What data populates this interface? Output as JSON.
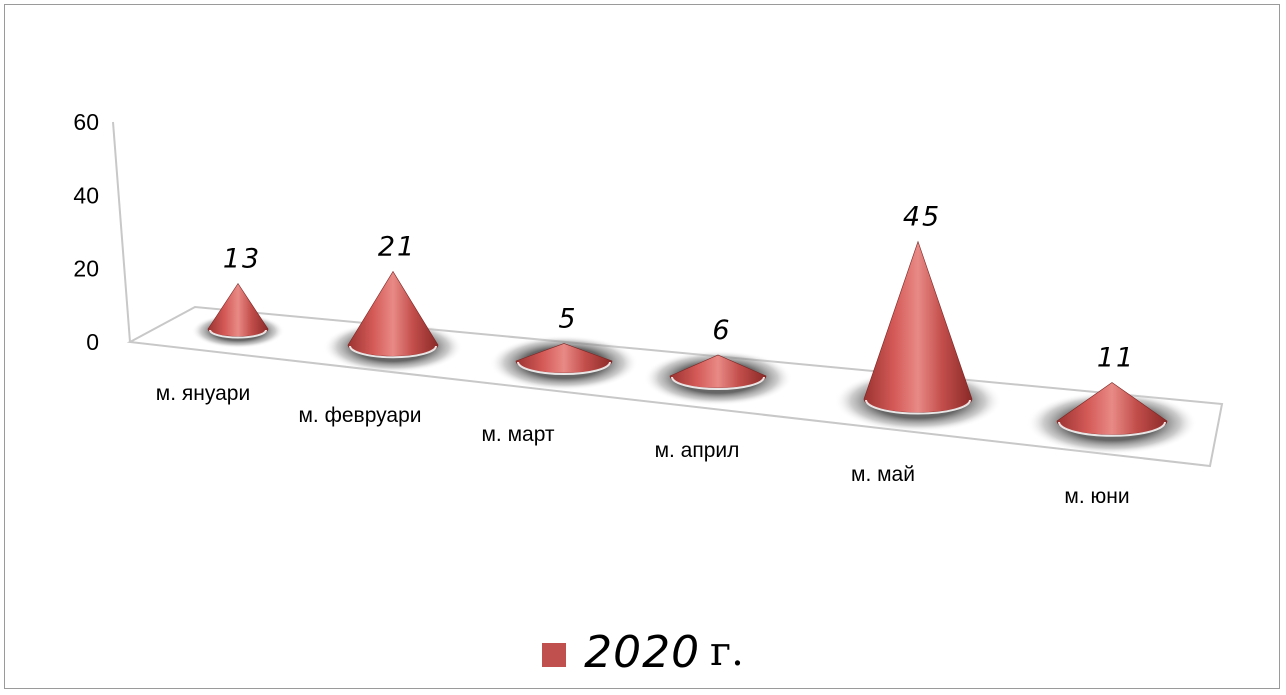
{
  "chart_data": {
    "type": "bar",
    "style": "3d-cone",
    "categories": [
      "м. януари",
      "м. февруари",
      "м. март",
      "м. април",
      "м. май",
      "м. юни"
    ],
    "series": [
      {
        "name": "2020 г.",
        "name_number": "2020",
        "name_unit": "г.",
        "values": [
          13,
          21,
          5,
          6,
          45,
          11
        ],
        "color": "#c0504d"
      }
    ],
    "data_labels": [
      "13",
      "21",
      "5",
      "6",
      "45",
      "11"
    ],
    "y_ticks": [
      "0",
      "20",
      "40",
      "60"
    ],
    "ylim": [
      0,
      60
    ],
    "legend_position": "bottom",
    "grid": false
  }
}
